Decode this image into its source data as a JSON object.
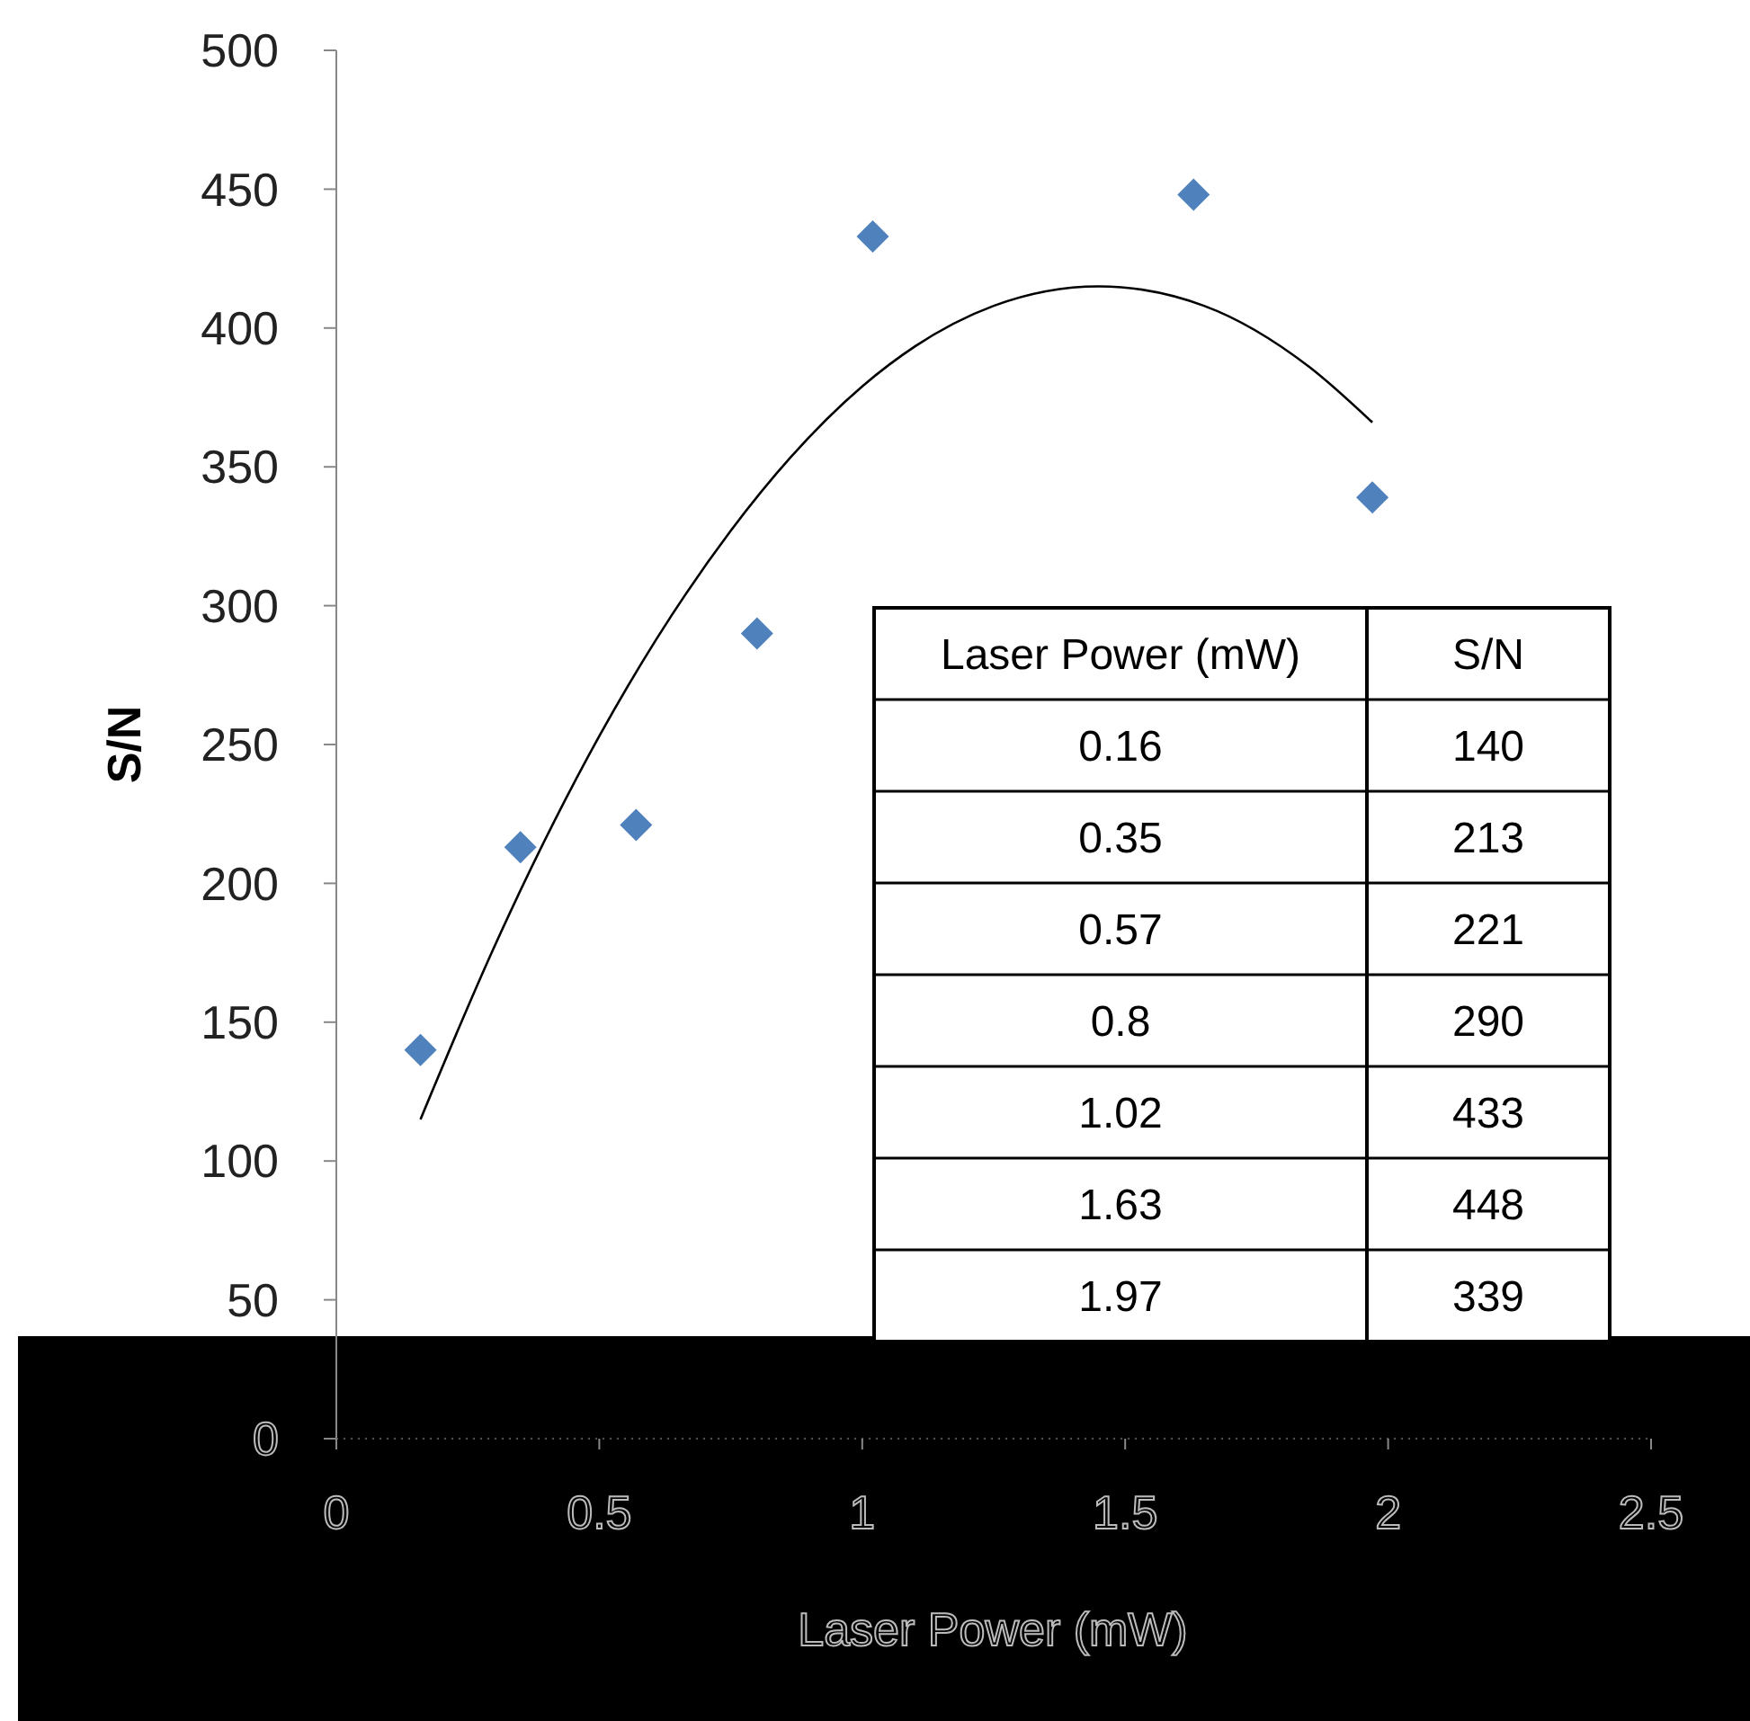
{
  "chart_data": [
    {
      "type": "scatter",
      "xlabel": "Laser Power (mW)",
      "ylabel": "S/N",
      "xlim": [
        0,
        2.5
      ],
      "xticks": [
        0,
        0.5,
        1,
        1.5,
        2,
        2.5
      ],
      "ylim": [
        0,
        500
      ],
      "yticks": [
        0,
        50,
        100,
        150,
        200,
        250,
        300,
        350,
        400,
        450,
        500
      ],
      "series": [
        {
          "color": "#4f81bd",
          "marker": "diamond",
          "x": [
            0.16,
            0.35,
            0.57,
            0.8,
            1.02,
            1.63,
            1.97
          ],
          "values": [
            140,
            213,
            221,
            290,
            433,
            448,
            339
          ]
        },
        {
          "type": "line",
          "color": "#000000",
          "marker": "none",
          "line_style": "solid",
          "x": [
            0.16,
            0.3,
            0.5,
            0.75,
            1.0,
            1.25,
            1.45,
            1.65,
            1.85,
            1.97
          ],
          "values": [
            115,
            177,
            253,
            327,
            379,
            408,
            415,
            408,
            386,
            366
          ]
        }
      ]
    },
    {
      "type": "other",
      "annotations": [
        "Laser Power (mW)",
        "S/N",
        "0.16",
        "140",
        "0.35",
        "213",
        "0.57",
        "221",
        "0.8",
        "290",
        "1.02",
        "433",
        "1.63",
        "448",
        "1.97",
        "339"
      ]
    }
  ]
}
